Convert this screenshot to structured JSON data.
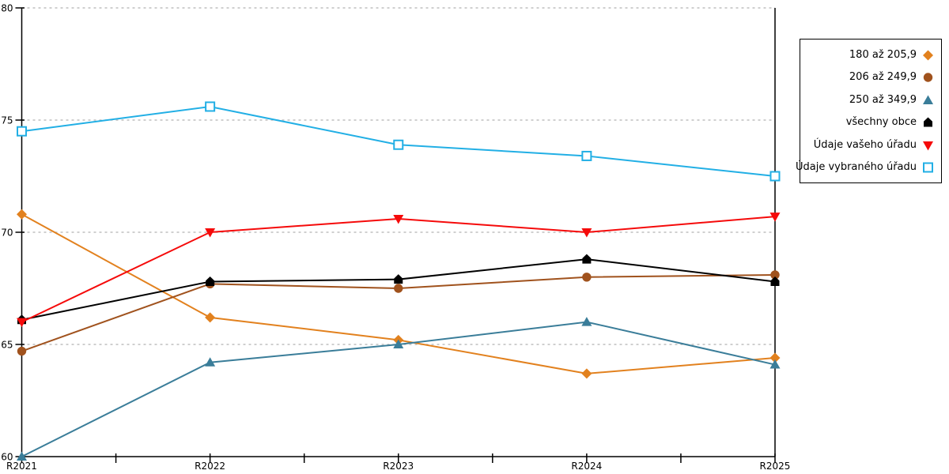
{
  "chart_data": {
    "type": "line",
    "title": "",
    "xlabel": "",
    "ylabel": "",
    "x_categories": [
      "R2021",
      "R2022",
      "R2023",
      "R2024",
      "R2025"
    ],
    "ylim": [
      60,
      80
    ],
    "yticks": [
      60,
      65,
      70,
      75,
      80
    ],
    "grid": "horizontal-dashed",
    "legend_position": "right",
    "series": [
      {
        "name": "180 až 205,9",
        "marker": "diamond",
        "color": "#E2811E",
        "values": [
          70.8,
          66.2,
          65.2,
          63.7,
          64.4
        ]
      },
      {
        "name": "206 až 249,9",
        "marker": "circle",
        "color": "#A0521D",
        "values": [
          64.7,
          67.7,
          67.5,
          68.0,
          68.1
        ]
      },
      {
        "name": "250 až 349,9",
        "marker": "triangle-up",
        "color": "#3A7D99",
        "values": [
          60.0,
          64.2,
          65.0,
          66.0,
          64.1
        ]
      },
      {
        "name": "všechny obce",
        "marker": "pentagon",
        "color": "#000000",
        "values": [
          66.1,
          67.8,
          67.9,
          68.8,
          67.8
        ]
      },
      {
        "name": "Údaje vašeho úřadu",
        "marker": "triangle-down",
        "color": "#F50A0A",
        "values": [
          66.0,
          70.0,
          70.6,
          70.0,
          70.7
        ]
      },
      {
        "name": "Údaje vybraného úřadu",
        "marker": "square-open",
        "color": "#22AFE5",
        "values": [
          74.5,
          75.6,
          73.9,
          73.4,
          72.5
        ]
      }
    ]
  },
  "colors": {
    "axis": "#000000",
    "gridline": "#bfbfbf",
    "background": "#ffffff"
  }
}
